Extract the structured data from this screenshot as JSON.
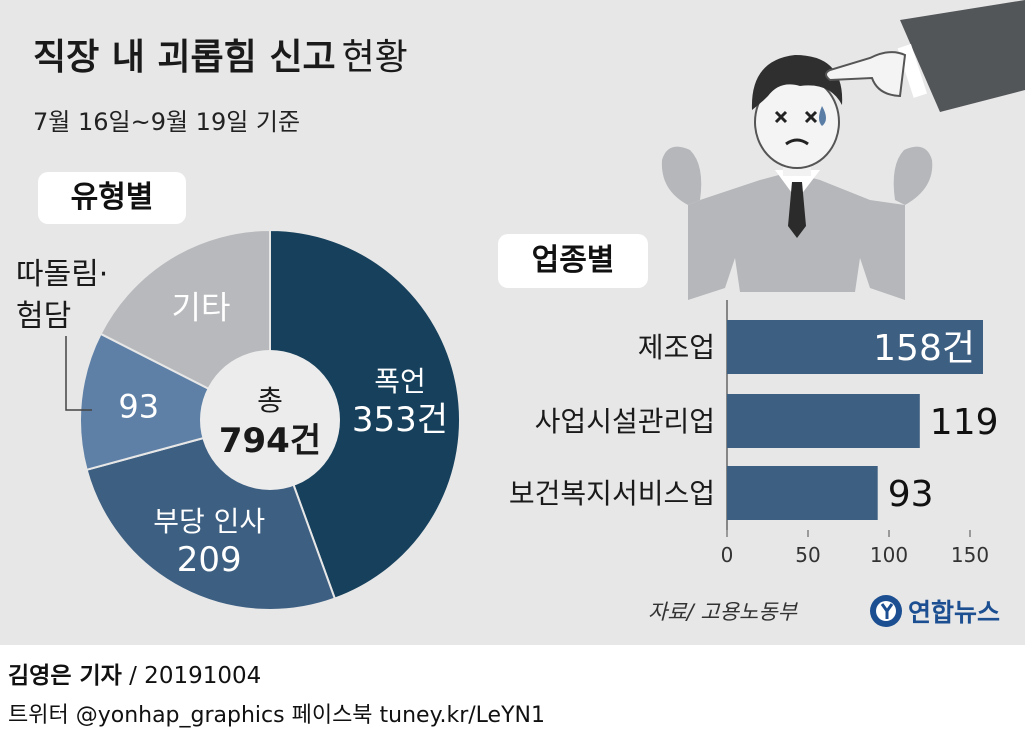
{
  "header": {
    "title_bold": "직장 내 괴롭힘 신고",
    "title_light": "현황",
    "subtitle": "7월 16일~9월 19일 기준"
  },
  "sections": {
    "by_type": "유형별",
    "by_industry": "업종별"
  },
  "pie_center": {
    "line1": "총",
    "line2": "794건"
  },
  "colors": {
    "background": "#e7e7e7",
    "pie_assault": "#16405c",
    "pie_personnel": "#3d5f82",
    "pie_ostracism": "#5e80a7",
    "pie_other": "#b7b9bc",
    "bar": "#3d5f82"
  },
  "chart_data": [
    {
      "type": "pie",
      "title": "유형별",
      "total_label": "총 794건",
      "slices": [
        {
          "name": "폭언",
          "value": 353,
          "label": "353건"
        },
        {
          "name": "부당 인사",
          "value": 209,
          "label": "209"
        },
        {
          "name": "따돌림·험담",
          "value": 93,
          "label": "93"
        },
        {
          "name": "기타",
          "value": 139,
          "label": ""
        }
      ]
    },
    {
      "type": "bar",
      "title": "업종별",
      "orientation": "horizontal",
      "categories": [
        "제조업",
        "사업시설관리업",
        "보건복지서비스업"
      ],
      "values": [
        158,
        119,
        93
      ],
      "value_labels": [
        "158건",
        "119",
        "93"
      ],
      "xlim": [
        0,
        150
      ],
      "xticks": [
        0,
        50,
        100,
        150
      ],
      "grid": false
    }
  ],
  "illustration": {
    "icon": "pointing-hand-stressed-man-icon"
  },
  "footer": {
    "source": "자료/ 고용노동부",
    "logo_text": "연합뉴스",
    "byline_name": "김영은 기자",
    "byline_date": " / 20191004",
    "social": "트위터 @yonhap_graphics  페이스북 tuney.kr/LeYN1"
  }
}
